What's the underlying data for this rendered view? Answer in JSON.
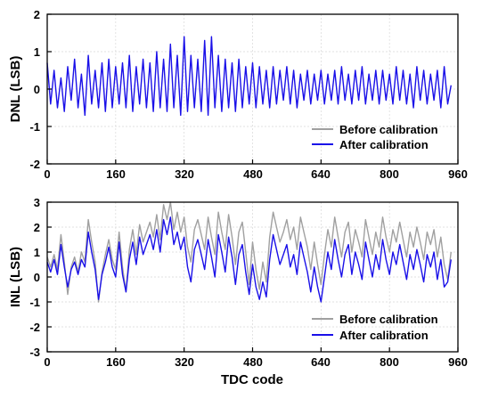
{
  "chart_data": [
    {
      "type": "line",
      "xlabel": "",
      "ylabel": "DNL (LSB)",
      "xlim": [
        0,
        960
      ],
      "ylim": [
        -2,
        2
      ],
      "xticks": [
        "0",
        "160",
        "320",
        "480",
        "640",
        "800",
        "960"
      ],
      "yticks": [
        "2",
        "1",
        "0",
        "-1",
        "-2"
      ],
      "grid": true,
      "legend_position": "bottom-right",
      "series": [
        {
          "name": "Before calibration",
          "color": "#a0a0a0",
          "x": [],
          "y": []
        },
        {
          "name": "After calibration",
          "color": "#1a10e8",
          "x": [
            0,
            8,
            16,
            24,
            32,
            40,
            48,
            56,
            64,
            72,
            80,
            88,
            96,
            104,
            112,
            120,
            128,
            136,
            144,
            152,
            160,
            168,
            176,
            184,
            192,
            200,
            208,
            216,
            224,
            232,
            240,
            248,
            256,
            264,
            272,
            280,
            288,
            296,
            304,
            312,
            320,
            328,
            336,
            344,
            352,
            360,
            368,
            376,
            384,
            392,
            400,
            408,
            416,
            424,
            432,
            440,
            448,
            456,
            464,
            472,
            480,
            488,
            496,
            504,
            512,
            520,
            528,
            536,
            544,
            552,
            560,
            568,
            576,
            584,
            592,
            600,
            608,
            616,
            624,
            632,
            640,
            648,
            656,
            664,
            672,
            680,
            688,
            696,
            704,
            712,
            720,
            728,
            736,
            744,
            752,
            760,
            768,
            776,
            784,
            792,
            800,
            808,
            816,
            824,
            832,
            840,
            848,
            856,
            864,
            872,
            880,
            888,
            896,
            904,
            912,
            920,
            928,
            936,
            944
          ],
          "y": [
            0.7,
            -0.4,
            0.5,
            -0.5,
            0.3,
            -0.6,
            0.6,
            -0.3,
            0.8,
            -0.5,
            0.4,
            -0.7,
            0.9,
            -0.4,
            0.5,
            -0.5,
            0.7,
            -0.6,
            0.8,
            -0.5,
            0.6,
            -0.4,
            0.7,
            -0.5,
            0.9,
            -0.6,
            0.6,
            -0.4,
            0.8,
            -0.5,
            0.7,
            -0.6,
            1.0,
            -0.5,
            0.8,
            -0.6,
            1.2,
            -0.5,
            0.9,
            -0.7,
            1.4,
            -0.6,
            0.9,
            -0.5,
            0.8,
            -0.6,
            1.3,
            -0.7,
            1.4,
            -0.5,
            0.9,
            -0.6,
            0.8,
            -0.5,
            0.7,
            -0.6,
            0.8,
            -0.5,
            0.6,
            -0.4,
            0.7,
            -0.5,
            0.6,
            -0.4,
            0.5,
            -0.5,
            0.6,
            -0.4,
            0.5,
            -0.3,
            0.6,
            -0.4,
            0.5,
            -0.5,
            0.4,
            -0.3,
            0.5,
            -0.4,
            0.4,
            -0.3,
            0.5,
            -0.4,
            0.4,
            -0.3,
            0.5,
            -0.4,
            0.6,
            -0.3,
            0.4,
            -0.4,
            0.5,
            -0.3,
            0.6,
            -0.4,
            0.4,
            -0.3,
            0.5,
            -0.4,
            0.5,
            -0.3,
            0.4,
            -0.4,
            0.6,
            -0.3,
            0.5,
            -0.4,
            0.4,
            -0.5,
            0.6,
            -0.3,
            0.5,
            -0.4,
            0.4,
            -0.3,
            0.5,
            -0.5,
            0.6,
            -0.4,
            0.1
          ]
        }
      ]
    },
    {
      "type": "line",
      "xlabel": "TDC code",
      "ylabel": "INL (LSB)",
      "xlim": [
        0,
        960
      ],
      "ylim": [
        -3,
        3
      ],
      "xticks": [
        "0",
        "160",
        "320",
        "480",
        "640",
        "800",
        "960"
      ],
      "yticks": [
        "3",
        "2",
        "1",
        "0",
        "-1",
        "-2",
        "-3"
      ],
      "grid": true,
      "legend_position": "bottom-right",
      "series": [
        {
          "name": "Before calibration",
          "color": "#a0a0a0",
          "x": [
            0,
            8,
            16,
            24,
            32,
            40,
            48,
            56,
            64,
            72,
            80,
            88,
            96,
            104,
            112,
            120,
            128,
            136,
            144,
            152,
            160,
            168,
            176,
            184,
            192,
            200,
            208,
            216,
            224,
            232,
            240,
            248,
            256,
            264,
            272,
            280,
            288,
            296,
            304,
            312,
            320,
            328,
            336,
            344,
            352,
            360,
            368,
            376,
            384,
            392,
            400,
            408,
            416,
            424,
            432,
            440,
            448,
            456,
            464,
            472,
            480,
            488,
            496,
            504,
            512,
            520,
            528,
            536,
            544,
            552,
            560,
            568,
            576,
            584,
            592,
            600,
            608,
            616,
            624,
            632,
            640,
            648,
            656,
            664,
            672,
            680,
            688,
            696,
            704,
            712,
            720,
            728,
            736,
            744,
            752,
            760,
            768,
            776,
            784,
            792,
            800,
            808,
            816,
            824,
            832,
            840,
            848,
            856,
            864,
            872,
            880,
            888,
            896,
            904,
            912,
            920,
            928,
            936,
            944
          ],
          "y": [
            0.8,
            0.4,
            0.9,
            0.3,
            1.7,
            0.6,
            -0.7,
            0.4,
            0.8,
            0.2,
            1.0,
            0.6,
            2.3,
            1.4,
            0.6,
            -1.0,
            0.2,
            0.9,
            1.5,
            0.7,
            0.3,
            1.8,
            0.4,
            -0.6,
            1.1,
            1.9,
            0.9,
            2.1,
            1.4,
            1.8,
            2.2,
            1.6,
            2.5,
            1.5,
            2.9,
            2.3,
            3.0,
            1.9,
            2.6,
            1.8,
            2.4,
            1.2,
            0.6,
            1.9,
            2.3,
            1.7,
            1.1,
            2.4,
            1.6,
            0.9,
            2.6,
            1.8,
            1.1,
            2.5,
            1.6,
            0.5,
            1.8,
            2.2,
            1.0,
            -0.3,
            1.4,
            0.3,
            -0.5,
            0.6,
            -0.2,
            1.6,
            2.6,
            2.0,
            1.4,
            1.8,
            2.3,
            1.5,
            2.0,
            1.1,
            2.4,
            1.8,
            1.2,
            0.3,
            1.4,
            0.5,
            -0.3,
            0.9,
            1.9,
            1.2,
            2.4,
            1.6,
            0.8,
            1.8,
            2.2,
            1.0,
            1.9,
            1.4,
            0.8,
            2.3,
            1.6,
            0.9,
            1.8,
            1.2,
            2.4,
            1.6,
            1.0,
            1.9,
            1.4,
            2.2,
            1.5,
            0.8,
            1.8,
            1.2,
            2.0,
            1.4,
            0.7,
            1.8,
            1.3,
            1.9,
            0.8,
            1.6,
            0.5,
            -0.1,
            1.0
          ]
        },
        {
          "name": "After calibration",
          "color": "#1a10e8",
          "x": [
            0,
            8,
            16,
            24,
            32,
            40,
            48,
            56,
            64,
            72,
            80,
            88,
            96,
            104,
            112,
            120,
            128,
            136,
            144,
            152,
            160,
            168,
            176,
            184,
            192,
            200,
            208,
            216,
            224,
            232,
            240,
            248,
            256,
            264,
            272,
            280,
            288,
            296,
            304,
            312,
            320,
            328,
            336,
            344,
            352,
            360,
            368,
            376,
            384,
            392,
            400,
            408,
            416,
            424,
            432,
            440,
            448,
            456,
            464,
            472,
            480,
            488,
            496,
            504,
            512,
            520,
            528,
            536,
            544,
            552,
            560,
            568,
            576,
            584,
            592,
            600,
            608,
            616,
            624,
            632,
            640,
            648,
            656,
            664,
            672,
            680,
            688,
            696,
            704,
            712,
            720,
            728,
            736,
            744,
            752,
            760,
            768,
            776,
            784,
            792,
            800,
            808,
            816,
            824,
            832,
            840,
            848,
            856,
            864,
            872,
            880,
            888,
            896,
            904,
            912,
            920,
            928,
            936,
            944
          ],
          "y": [
            0.6,
            0.2,
            0.7,
            0.1,
            1.3,
            0.4,
            -0.4,
            0.3,
            0.6,
            0.1,
            0.7,
            0.4,
            1.8,
            1.0,
            0.3,
            -0.9,
            0.1,
            0.6,
            1.2,
            0.4,
            0.0,
            1.4,
            0.1,
            -0.6,
            0.7,
            1.4,
            0.5,
            1.6,
            0.9,
            1.3,
            1.7,
            1.1,
            1.9,
            1.0,
            2.3,
            1.7,
            2.4,
            1.3,
            1.8,
            1.1,
            1.6,
            0.4,
            -0.2,
            1.1,
            1.5,
            0.9,
            0.3,
            1.5,
            0.8,
            0.0,
            1.7,
            1.0,
            0.2,
            1.6,
            0.8,
            -0.3,
            0.9,
            1.3,
            0.2,
            -0.7,
            0.5,
            -0.4,
            -0.9,
            -0.2,
            -0.8,
            0.7,
            1.7,
            1.1,
            0.5,
            0.9,
            1.3,
            0.4,
            0.9,
            0.1,
            1.4,
            0.8,
            0.2,
            -0.6,
            0.4,
            -0.4,
            -1.0,
            0.0,
            1.0,
            0.3,
            1.5,
            0.7,
            0.0,
            0.9,
            1.3,
            0.1,
            1.0,
            0.5,
            -0.1,
            1.4,
            0.7,
            0.0,
            0.9,
            0.3,
            1.5,
            0.7,
            0.1,
            1.0,
            0.5,
            1.3,
            0.6,
            -0.1,
            0.9,
            0.3,
            1.1,
            0.5,
            -0.2,
            0.9,
            0.4,
            1.0,
            -0.1,
            0.7,
            -0.4,
            -0.2,
            0.7
          ]
        }
      ]
    }
  ]
}
